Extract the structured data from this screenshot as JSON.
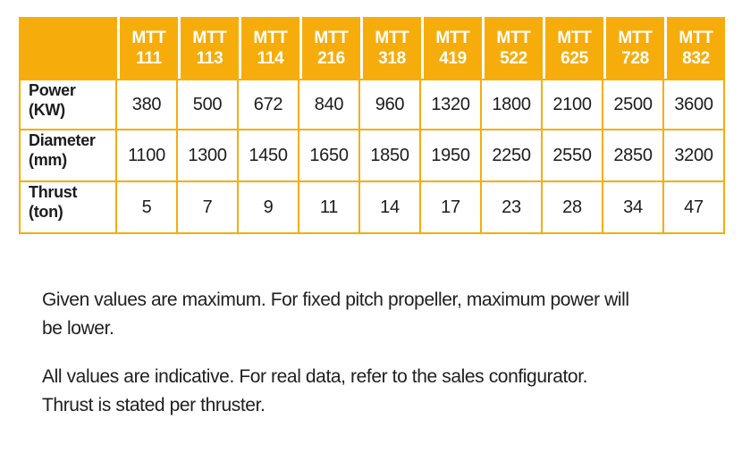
{
  "brand": {
    "accent": "#F6AD0B",
    "header_text_color": "#ffffff"
  },
  "table": {
    "header_prefix": "MTT",
    "models": [
      "111",
      "113",
      "114",
      "216",
      "318",
      "419",
      "522",
      "625",
      "728",
      "832"
    ],
    "rows": [
      {
        "label_name": "Power",
        "label_unit": "(KW)",
        "values": [
          "380",
          "500",
          "672",
          "840",
          "960",
          "1320",
          "1800",
          "2100",
          "2500",
          "3600"
        ]
      },
      {
        "label_name": "Diameter",
        "label_unit": "(mm)",
        "values": [
          "1100",
          "1300",
          "1450",
          "1650",
          "1850",
          "1950",
          "2250",
          "2550",
          "2850",
          "3200"
        ]
      },
      {
        "label_name": "Thrust",
        "label_unit": "(ton)",
        "values": [
          "5",
          "7",
          "9",
          "11",
          "14",
          "17",
          "23",
          "28",
          "34",
          "47"
        ]
      }
    ]
  },
  "notes": [
    {
      "lines": [
        "Given values are maximum. For fixed pitch propeller, maximum power will",
        "be lower."
      ]
    },
    {
      "lines": [
        "All values are indicative. For real data, refer to the sales configurator.",
        "Thrust is stated per thruster."
      ]
    }
  ]
}
